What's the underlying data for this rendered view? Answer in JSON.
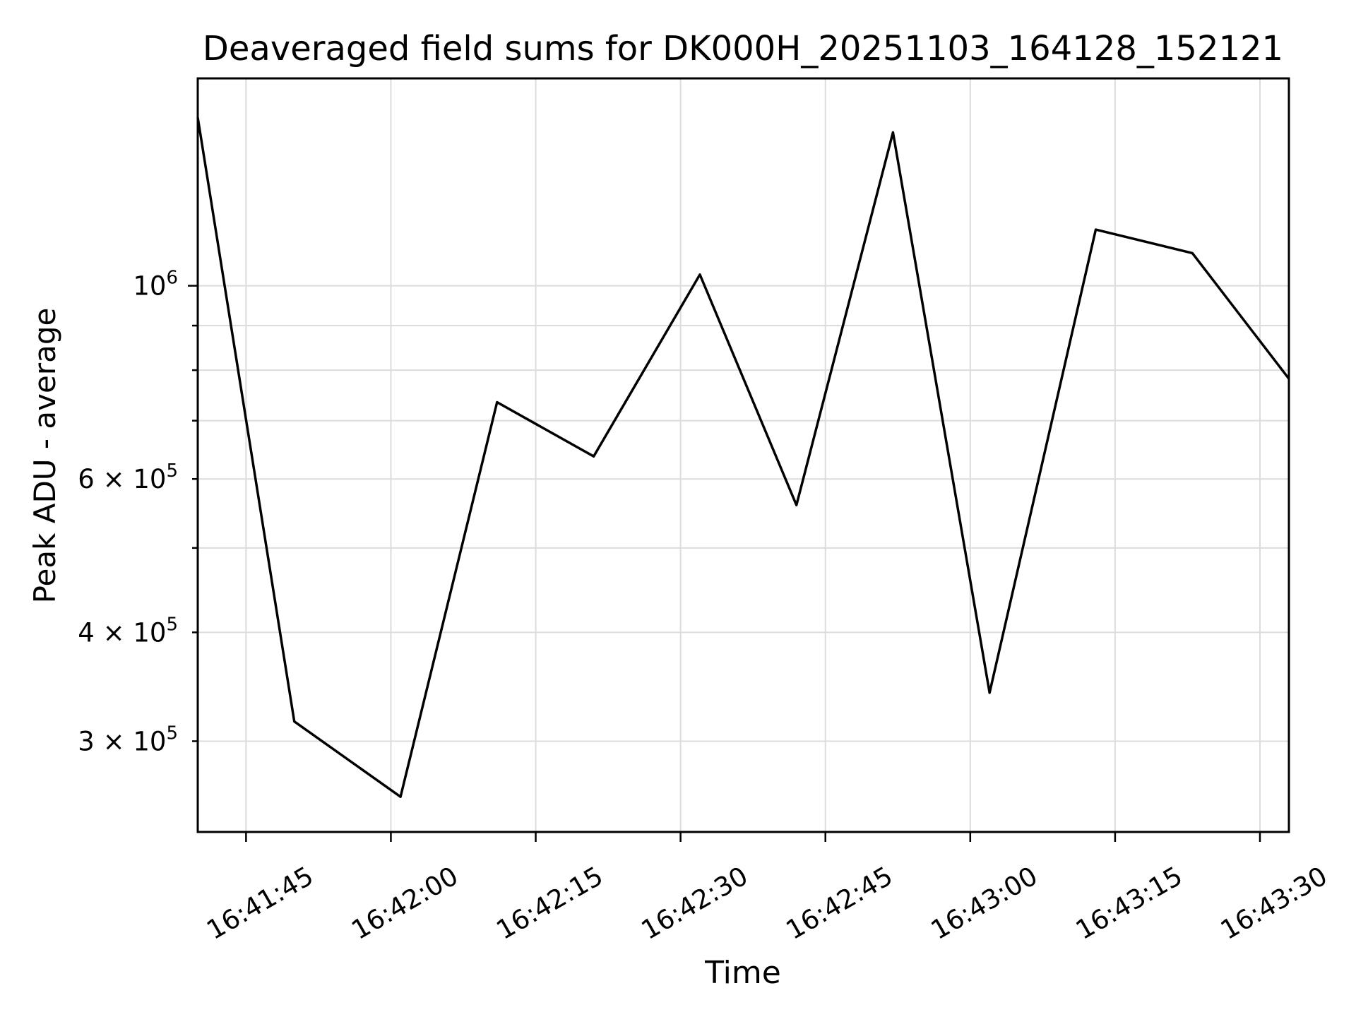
{
  "figure": {
    "background": "#ffffff"
  },
  "chart_data": {
    "type": "line",
    "title": "Deaveraged field sums for DK000H_20251103_164128_152121",
    "xlabel": "Time",
    "ylabel": "Peak ADU - average",
    "yscale": "log",
    "grid": true,
    "legend_position": "none",
    "line_color": "#000000",
    "grid_color": "#dcdcdc",
    "text_color": "#000000",
    "background": "#ffffff",
    "x": [
      "16:41:40",
      "16:41:50",
      "16:42:01",
      "16:42:11",
      "16:42:21",
      "16:42:32",
      "16:42:42",
      "16:42:52",
      "16:43:02",
      "16:43:13",
      "16:43:23",
      "16:43:33"
    ],
    "y": [
      1560000,
      316000,
      259000,
      735000,
      637000,
      1030000,
      560000,
      1500000,
      341000,
      1160000,
      1090000,
      782000
    ],
    "x_ticks": [
      "16:41:45",
      "16:42:00",
      "16:42:15",
      "16:42:30",
      "16:42:45",
      "16:43:00",
      "16:43:15",
      "16:43:30"
    ],
    "y_ticks": [
      {
        "value": 1000000,
        "mantissa": "10",
        "exponent": "6"
      },
      {
        "value": 600000,
        "mantissa": "6 × 10",
        "exponent": "5"
      },
      {
        "value": 400000,
        "mantissa": "4 × 10",
        "exponent": "5"
      },
      {
        "value": 300000,
        "mantissa": "3 × 10",
        "exponent": "5"
      }
    ],
    "xlim": [
      "16:41:40",
      "16:43:33"
    ],
    "ylim": [
      236000,
      1730000
    ]
  }
}
